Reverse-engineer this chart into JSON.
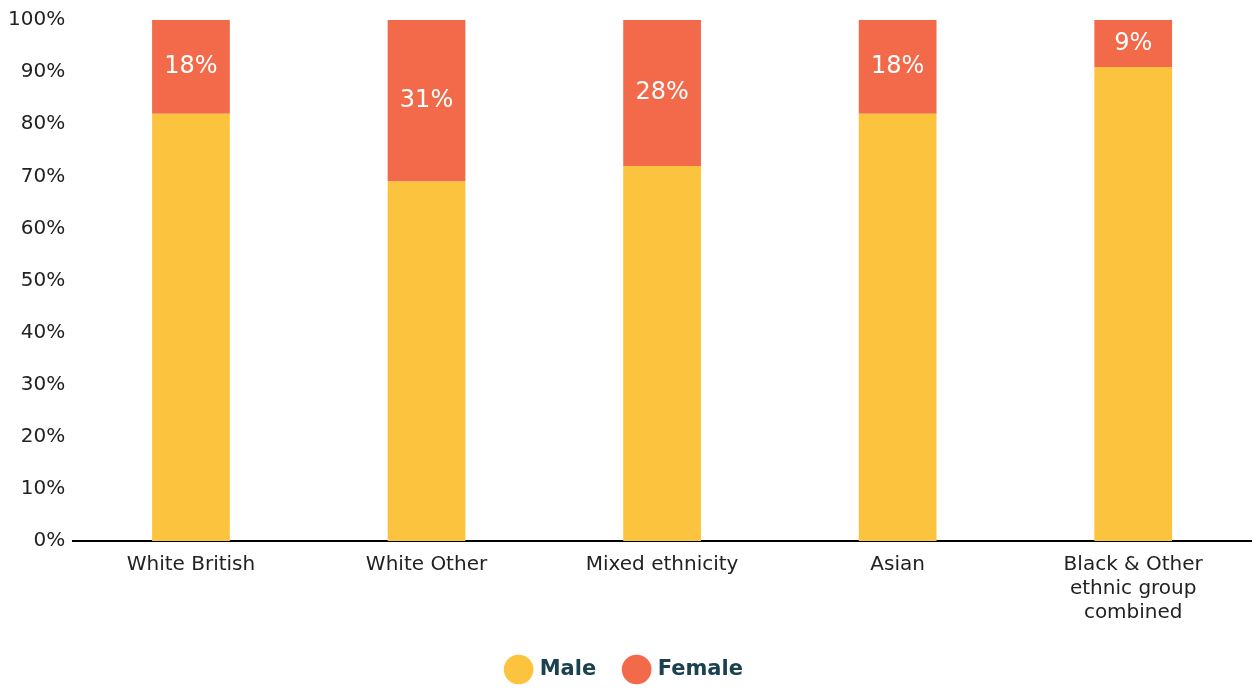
{
  "chart_data": {
    "type": "bar",
    "stacked": true,
    "categories": [
      "White British",
      "White Other",
      "Mixed ethnicity",
      "Asian",
      "Black & Other ethnic group combined"
    ],
    "series": [
      {
        "name": "Male",
        "color": "#fcc43e",
        "values": [
          82,
          69,
          72,
          82,
          91
        ]
      },
      {
        "name": "Female",
        "color": "#f26a4a",
        "values": [
          18,
          31,
          28,
          18,
          9
        ],
        "value_labels": [
          "18%",
          "31%",
          "28%",
          "18%",
          "9%"
        ]
      }
    ],
    "ylim": [
      0,
      100
    ],
    "yticks": [
      {
        "value": 0,
        "label": "0%"
      },
      {
        "value": 10,
        "label": "10%"
      },
      {
        "value": 20,
        "label": "20%"
      },
      {
        "value": 30,
        "label": "30%"
      },
      {
        "value": 40,
        "label": "40%"
      },
      {
        "value": 50,
        "label": "50%"
      },
      {
        "value": 60,
        "label": "60%"
      },
      {
        "value": 70,
        "label": "70%"
      },
      {
        "value": 80,
        "label": "80%"
      },
      {
        "value": 90,
        "label": "90%"
      },
      {
        "value": 100,
        "label": "100%"
      }
    ],
    "grid": false,
    "legend": "bottom"
  }
}
